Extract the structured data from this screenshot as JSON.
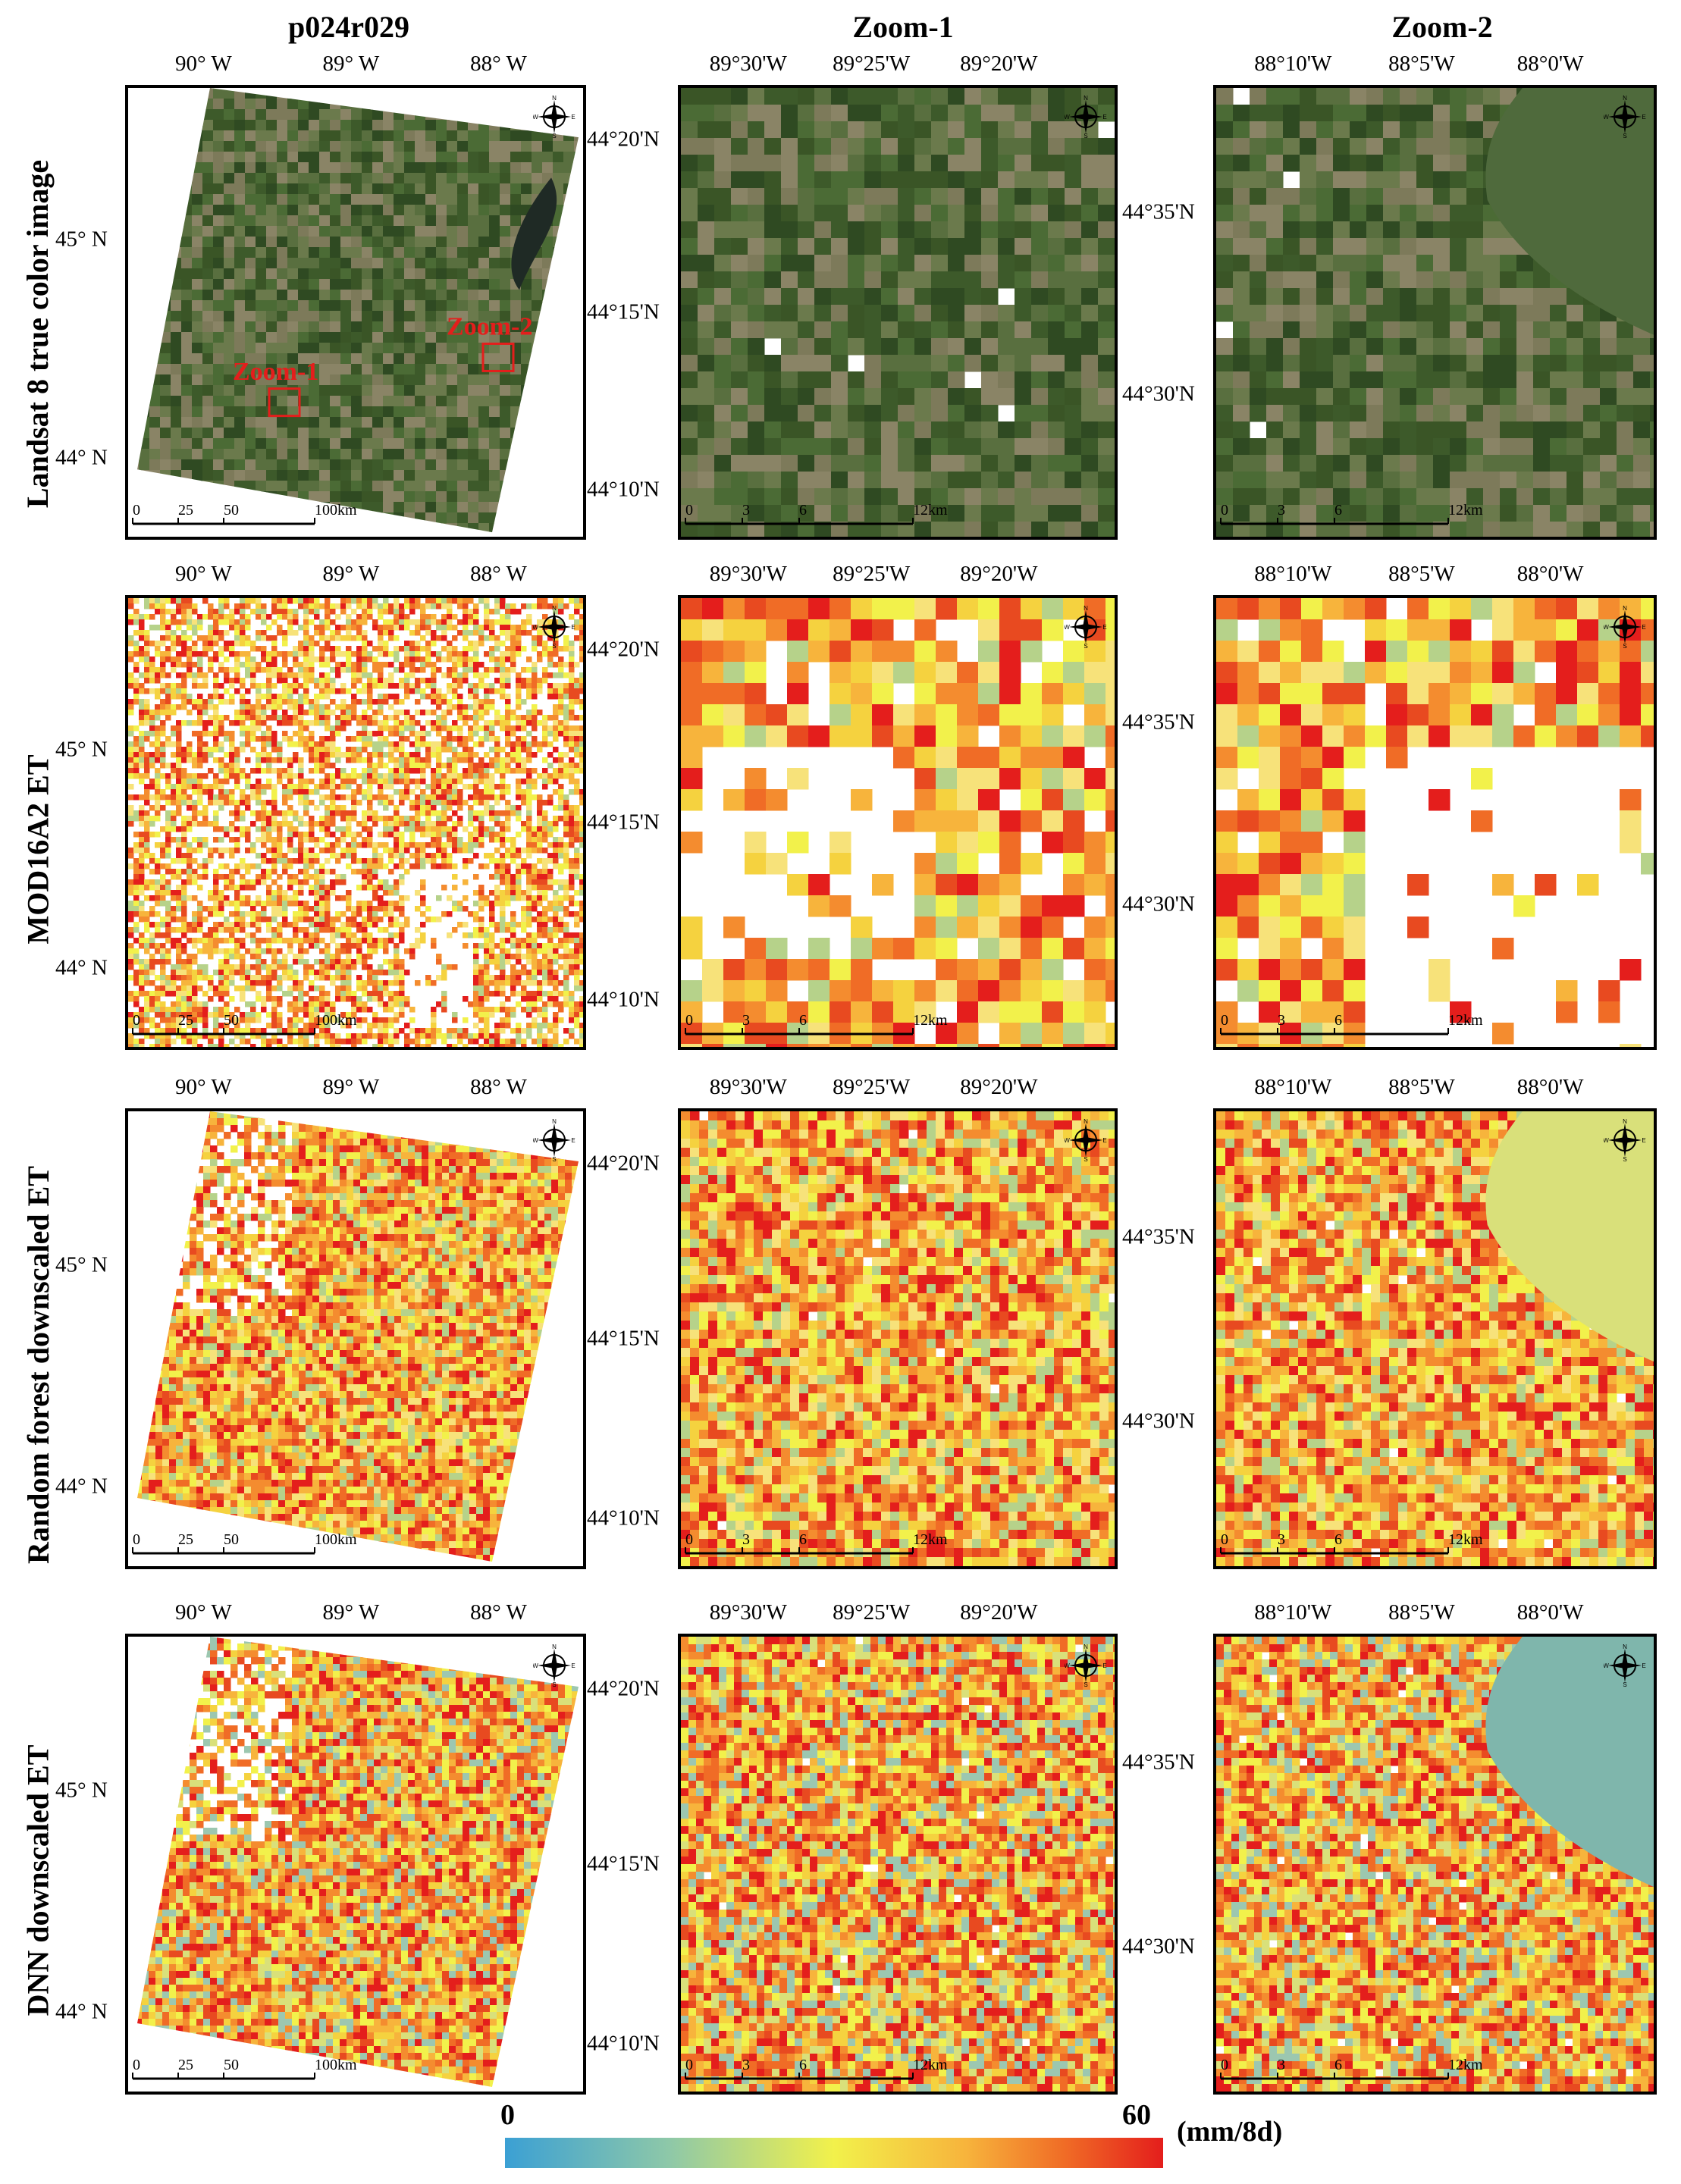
{
  "column_titles": {
    "c0": "p024r029",
    "c1": "Zoom-1",
    "c2": "Zoom-2"
  },
  "row_titles": {
    "r0": "Landsat 8 true color image",
    "r1": "MOD16A2 ET",
    "r2": "Random forest downscaled ET",
    "r3": "DNN downscaled ET"
  },
  "overview": {
    "lon_ticks": [
      "90° W",
      "89° W",
      "88° W"
    ],
    "lat_ticks": [
      "45° N",
      "44° N"
    ],
    "scalebar": [
      "0",
      "25",
      "50",
      "100km"
    ],
    "zoom_boxes": [
      "Zoom-1",
      "Zoom-2"
    ]
  },
  "zoom1": {
    "lon_ticks": [
      "89°30'W",
      "89°25'W",
      "89°20'W"
    ],
    "lat_ticks": [
      "44°20'N",
      "44°15'N",
      "44°10'N"
    ],
    "scalebar": [
      "0",
      "3",
      "6",
      "12km"
    ]
  },
  "zoom2": {
    "lon_ticks": [
      "88°10'W",
      "88°5'W",
      "88°0'W"
    ],
    "lat_ticks": [
      "44°35'N",
      "44°30'N"
    ],
    "scalebar": [
      "0",
      "3",
      "6",
      "12km"
    ]
  },
  "compass_letters": {
    "n": "N",
    "s": "S",
    "e": "E",
    "w": "W"
  },
  "colorbar": {
    "min": "0",
    "max": "60",
    "unit": "(mm/8d)",
    "colors": [
      "#3ba0d4",
      "#8ec8a8",
      "#f2f14b",
      "#f7b43c",
      "#f06c26",
      "#e41e1c"
    ]
  }
}
